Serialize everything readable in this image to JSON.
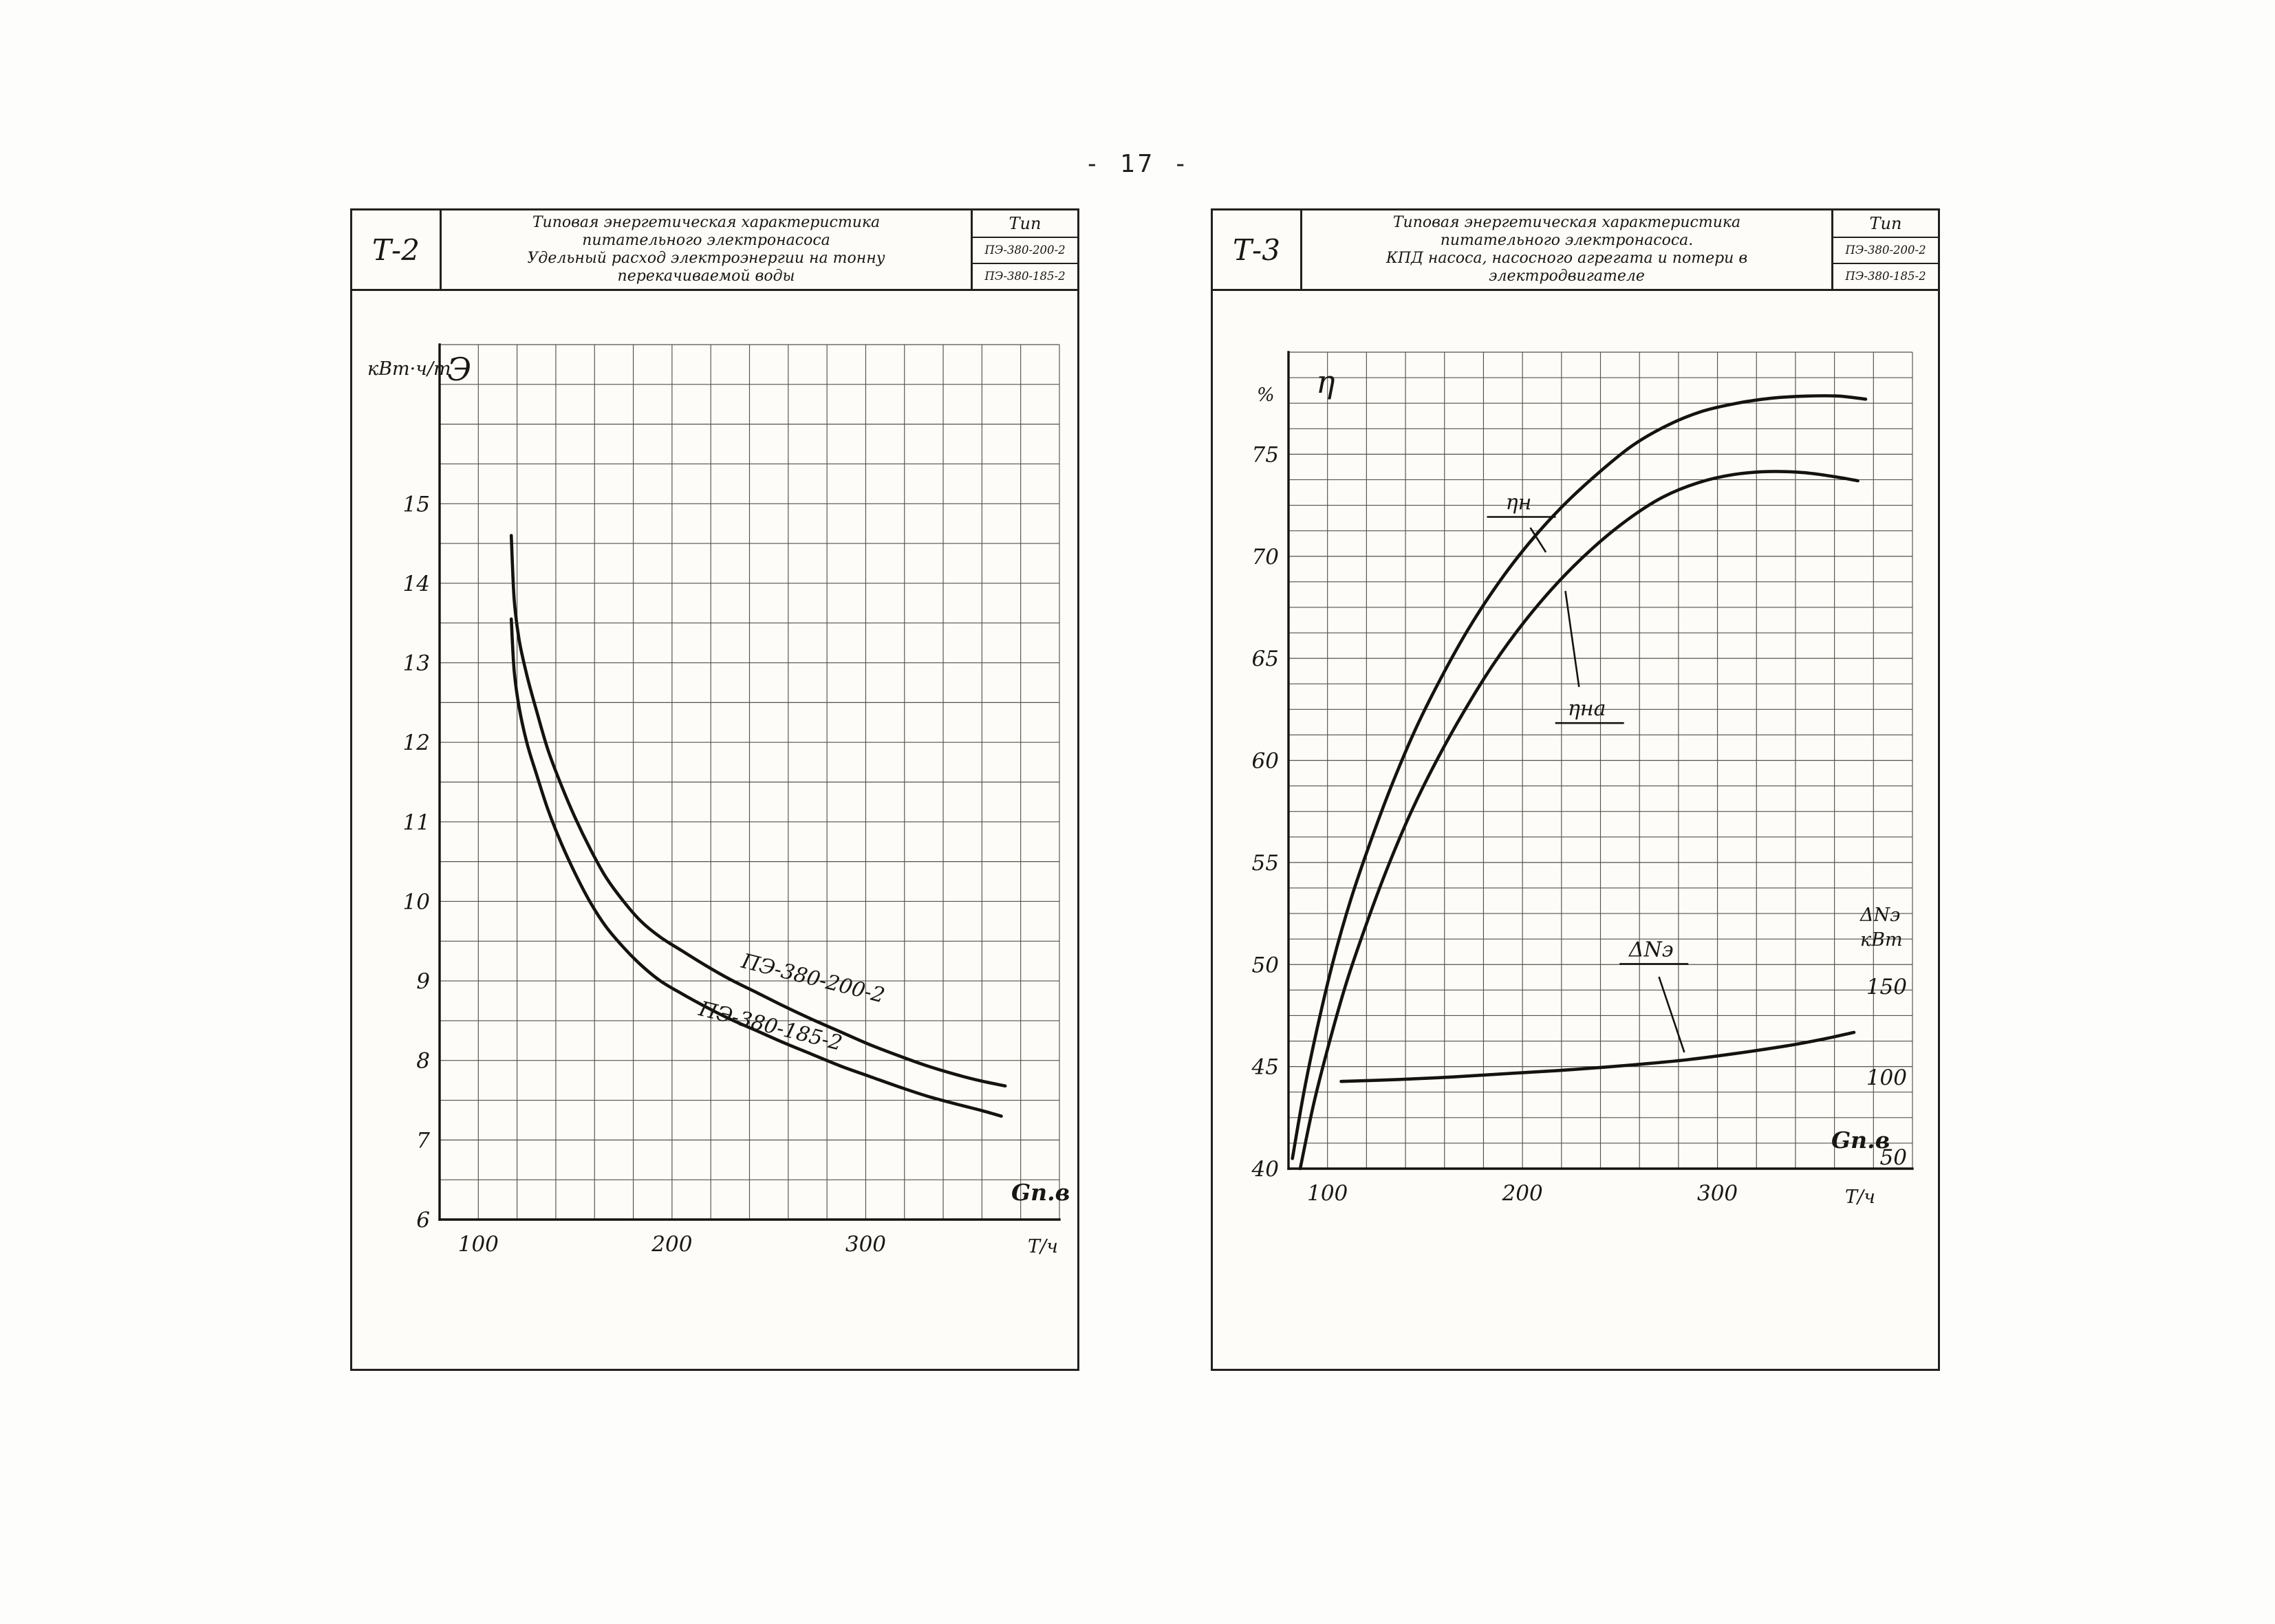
{
  "page": {
    "number_label": "- 17 -"
  },
  "panels": [
    {
      "code": "Т-2",
      "type_label": "Тип",
      "type_values": [
        "ПЭ-380-200-2",
        "ПЭ-380-185-2"
      ],
      "title_lines": [
        "Типовая энергетическая характеристика",
        "питательного электронасоса",
        "Удельный расход электроэнергии на тонну",
        "перекачиваемой воды"
      ]
    },
    {
      "code": "Т-3",
      "type_label": "Тип",
      "type_values": [
        "ПЭ-380-200-2",
        "ПЭ-380-185-2"
      ],
      "title_lines": [
        "Типовая энергетическая характеристика",
        "питательного электронасоса.",
        "КПД насоса, насосного агрегата и потери в",
        "электродвигателе"
      ]
    }
  ],
  "chart_data": [
    {
      "type": "line",
      "title": "Удельный расход электроэнергии на тонну перекачиваемой воды",
      "grid": true,
      "legend_position": "on-curve",
      "x_axis": {
        "label": "Gп.в",
        "unit": "Т/ч",
        "ticks": [
          100,
          200,
          300
        ],
        "min": 80,
        "max": 400,
        "grid_step": 20
      },
      "y_axis": {
        "unit": "кВт·ч/т",
        "symbol": "Э",
        "ticks": [
          15,
          14,
          13,
          12,
          11,
          10,
          9,
          8,
          7,
          6
        ],
        "min": 6,
        "max": 17,
        "grid_step": 0.5
      },
      "series": [
        {
          "name": "ПЭ-380-200-2",
          "points": [
            [
              117,
              14.6
            ],
            [
              118.5,
              13.8
            ],
            [
              121,
              13.3
            ],
            [
              125,
              12.85
            ],
            [
              130,
              12.4
            ],
            [
              136,
              11.9
            ],
            [
              143,
              11.45
            ],
            [
              150,
              11.05
            ],
            [
              158,
              10.65
            ],
            [
              166,
              10.3
            ],
            [
              175,
              10.0
            ],
            [
              184,
              9.75
            ],
            [
              194,
              9.55
            ],
            [
              205,
              9.38
            ],
            [
              217,
              9.2
            ],
            [
              230,
              9.02
            ],
            [
              244,
              8.85
            ],
            [
              258,
              8.68
            ],
            [
              272,
              8.52
            ],
            [
              287,
              8.36
            ],
            [
              302,
              8.2
            ],
            [
              317,
              8.06
            ],
            [
              332,
              7.93
            ],
            [
              347,
              7.82
            ],
            [
              360,
              7.74
            ],
            [
              372,
              7.68
            ]
          ]
        },
        {
          "name": "ПЭ-380-185-2",
          "points": [
            [
              117,
              13.55
            ],
            [
              118.5,
              12.9
            ],
            [
              121,
              12.45
            ],
            [
              125,
              12.0
            ],
            [
              130,
              11.6
            ],
            [
              136,
              11.15
            ],
            [
              143,
              10.72
            ],
            [
              150,
              10.35
            ],
            [
              158,
              9.98
            ],
            [
              166,
              9.68
            ],
            [
              175,
              9.42
            ],
            [
              184,
              9.2
            ],
            [
              194,
              9.0
            ],
            [
              205,
              8.84
            ],
            [
              217,
              8.68
            ],
            [
              230,
              8.52
            ],
            [
              244,
              8.37
            ],
            [
              258,
              8.22
            ],
            [
              272,
              8.08
            ],
            [
              287,
              7.93
            ],
            [
              302,
              7.8
            ],
            [
              317,
              7.67
            ],
            [
              332,
              7.55
            ],
            [
              347,
              7.45
            ],
            [
              360,
              7.37
            ],
            [
              370,
              7.3
            ]
          ]
        }
      ],
      "annotations": [
        {
          "text": "ПЭ-380-200-2",
          "x": 272,
          "y": 8.95,
          "rotate": 14
        },
        {
          "text": "ПЭ-380-185-2",
          "x": 250,
          "y": 8.35,
          "rotate": 14
        }
      ]
    },
    {
      "type": "line",
      "title": "КПД насоса, насосного агрегата и потери в электродвигателе",
      "grid": true,
      "legend_position": "on-curve",
      "x_axis": {
        "label": "Gп.в",
        "unit": "Т/ч",
        "ticks": [
          100,
          200,
          300
        ],
        "min": 80,
        "max": 400,
        "grid_step": 20
      },
      "y_axis": {
        "unit": "%",
        "symbol": "η",
        "ticks": [
          75,
          70,
          65,
          60,
          55,
          50,
          45,
          40
        ],
        "min": 40,
        "max": 80,
        "grid_step": 1.25
      },
      "y2_axis": {
        "label_lines": [
          "ΔNэ",
          "кВт"
        ],
        "ticks": [
          150,
          100,
          50
        ],
        "maps_to_y": [
          48.9,
          44.45,
          40.0
        ]
      },
      "series": [
        {
          "name": "ηн",
          "points": [
            [
              82,
              40.5
            ],
            [
              88,
              43.8
            ],
            [
              95,
              47.0
            ],
            [
              103,
              50.2
            ],
            [
              112,
              53.2
            ],
            [
              122,
              56.0
            ],
            [
              133,
              58.8
            ],
            [
              145,
              61.5
            ],
            [
              158,
              64.0
            ],
            [
              172,
              66.4
            ],
            [
              187,
              68.6
            ],
            [
              203,
              70.6
            ],
            [
              220,
              72.4
            ],
            [
              238,
              74.0
            ],
            [
              256,
              75.4
            ],
            [
              274,
              76.4
            ],
            [
              292,
              77.1
            ],
            [
              310,
              77.5
            ],
            [
              328,
              77.75
            ],
            [
              346,
              77.85
            ],
            [
              362,
              77.85
            ],
            [
              376,
              77.7
            ]
          ]
        },
        {
          "name": "ηна",
          "points": [
            [
              86,
              40.0
            ],
            [
              93,
              43.2
            ],
            [
              101,
              46.2
            ],
            [
              110,
              49.2
            ],
            [
              120,
              52.0
            ],
            [
              131,
              54.8
            ],
            [
              143,
              57.5
            ],
            [
              156,
              60.0
            ],
            [
              170,
              62.4
            ],
            [
              185,
              64.7
            ],
            [
              201,
              66.8
            ],
            [
              218,
              68.7
            ],
            [
              236,
              70.4
            ],
            [
              254,
              71.8
            ],
            [
              272,
              72.9
            ],
            [
              290,
              73.6
            ],
            [
              308,
              74.0
            ],
            [
              326,
              74.15
            ],
            [
              344,
              74.1
            ],
            [
              360,
              73.9
            ],
            [
              372,
              73.7
            ]
          ]
        },
        {
          "name": "ΔNэ",
          "axis": "y2",
          "points": [
            [
              107,
              98
            ],
            [
              135,
              99
            ],
            [
              165,
              100.5
            ],
            [
              195,
              102.5
            ],
            [
              225,
              104.5
            ],
            [
              255,
              107
            ],
            [
              285,
              110
            ],
            [
              310,
              113.5
            ],
            [
              335,
              117.5
            ],
            [
              355,
              121.5
            ],
            [
              370,
              125
            ]
          ]
        }
      ],
      "annotations": [
        {
          "text": "ηн",
          "x": 198,
          "y": 72.3,
          "underline": true,
          "leader": [
            [
              204,
              71.4
            ],
            [
              212,
              70.2
            ]
          ]
        },
        {
          "text": "ηна",
          "x": 233,
          "y": 62.2,
          "underline": true,
          "leader": [
            [
              229,
              63.6
            ],
            [
              222,
              68.3
            ]
          ]
        },
        {
          "text": "ΔNэ",
          "x": 266,
          "y": 50.4,
          "underline": true,
          "leader": [
            [
              270,
              49.4
            ],
            [
              283,
              45.7
            ]
          ]
        }
      ]
    }
  ]
}
